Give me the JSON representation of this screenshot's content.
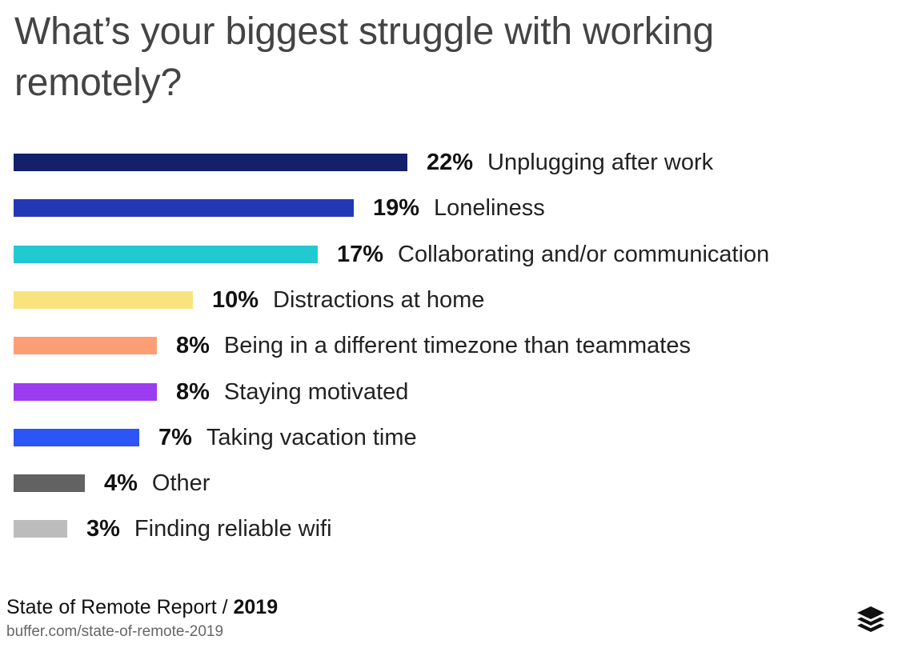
{
  "chart_data": {
    "type": "bar",
    "orientation": "horizontal",
    "title": "What’s your biggest struggle with working remotely?",
    "categories": [
      "Unplugging after work",
      "Loneliness",
      "Collaborating and/or communication",
      "Distractions at home",
      "Being in a different timezone than teammates",
      "Staying motivated",
      "Taking vacation time",
      "Other",
      "Finding reliable wifi"
    ],
    "values": [
      22,
      19,
      17,
      10,
      8,
      8,
      7,
      4,
      3
    ],
    "value_labels": [
      "22%",
      "19%",
      "17%",
      "10%",
      "8%",
      "8%",
      "7%",
      "4%",
      "3%"
    ],
    "colors": [
      "#15206a",
      "#2438b4",
      "#22c9d0",
      "#f9e37e",
      "#fd9e74",
      "#9b3cf0",
      "#2d54f5",
      "#626262",
      "#bcbcbc"
    ],
    "unit": "%",
    "xlim": [
      0,
      22
    ],
    "grid": false,
    "legend": "none"
  },
  "footer": {
    "report": "State of Remote Report / ",
    "year": "2019",
    "url": "buffer.com/state-of-remote-2019"
  },
  "logo": {
    "icon": "buffer-stack-logo-icon"
  }
}
